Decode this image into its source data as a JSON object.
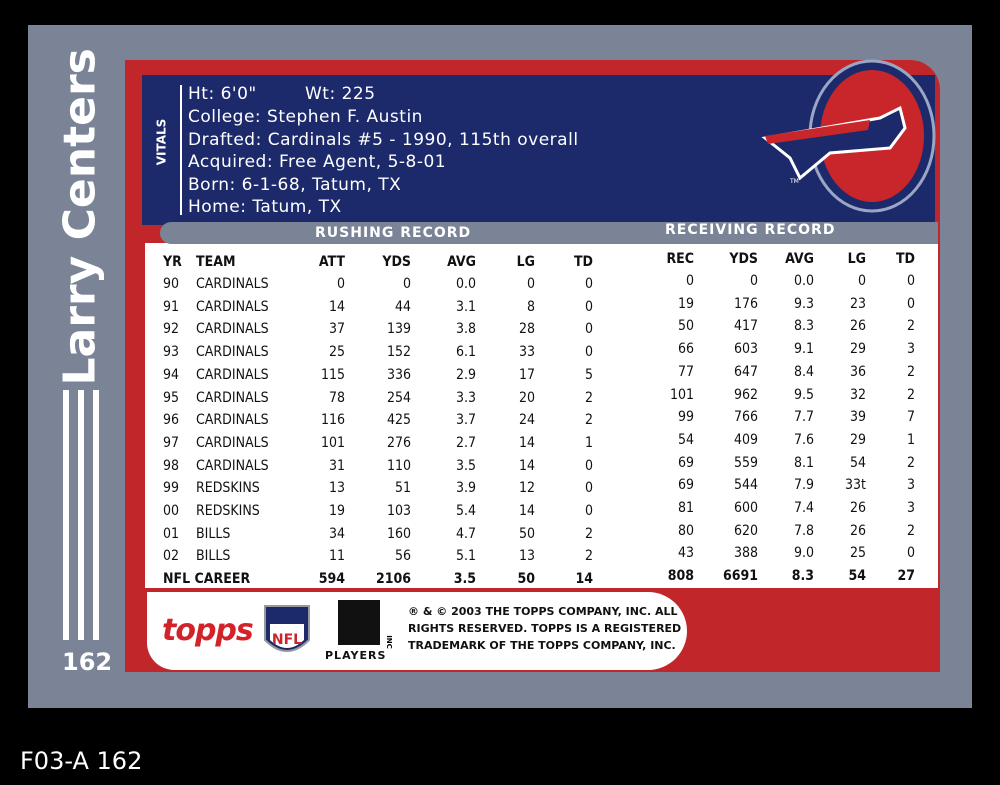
{
  "card": {
    "name": "Larry Centers",
    "number": "162",
    "vitals_label": "VITALS",
    "vitals": {
      "height": "Ht: 6'0\"",
      "weight": "Wt: 225",
      "lines": [
        "College: Stephen F. Austin",
        "Drafted: Cardinals #5 - 1990, 115th overall",
        "Acquired: Free Agent, 5-8-01",
        "Born: 6-1-68, Tatum, TX",
        "Home: Tatum, TX"
      ]
    },
    "logo_tm": "TM",
    "rushing": {
      "title": "RUSHING RECORD",
      "headers": [
        "YR",
        "TEAM",
        "ATT",
        "YDS",
        "AVG",
        "LG",
        "TD"
      ],
      "rows": [
        [
          "90",
          "CARDINALS",
          "0",
          "0",
          "0.0",
          "0",
          "0"
        ],
        [
          "91",
          "CARDINALS",
          "14",
          "44",
          "3.1",
          "8",
          "0"
        ],
        [
          "92",
          "CARDINALS",
          "37",
          "139",
          "3.8",
          "28",
          "0"
        ],
        [
          "93",
          "CARDINALS",
          "25",
          "152",
          "6.1",
          "33",
          "0"
        ],
        [
          "94",
          "CARDINALS",
          "115",
          "336",
          "2.9",
          "17",
          "5"
        ],
        [
          "95",
          "CARDINALS",
          "78",
          "254",
          "3.3",
          "20",
          "2"
        ],
        [
          "96",
          "CARDINALS",
          "116",
          "425",
          "3.7",
          "24",
          "2"
        ],
        [
          "97",
          "CARDINALS",
          "101",
          "276",
          "2.7",
          "14",
          "1"
        ],
        [
          "98",
          "CARDINALS",
          "31",
          "110",
          "3.5",
          "14",
          "0"
        ],
        [
          "99",
          "REDSKINS",
          "13",
          "51",
          "3.9",
          "12",
          "0"
        ],
        [
          "00",
          "REDSKINS",
          "19",
          "103",
          "5.4",
          "14",
          "0"
        ],
        [
          "01",
          "BILLS",
          "34",
          "160",
          "4.7",
          "50",
          "2"
        ],
        [
          "02",
          "BILLS",
          "11",
          "56",
          "5.1",
          "13",
          "2"
        ]
      ],
      "career": [
        "NFL CAREER",
        "594",
        "2106",
        "3.5",
        "50",
        "14"
      ]
    },
    "receiving": {
      "title": "RECEIVING RECORD",
      "headers": [
        "REC",
        "YDS",
        "AVG",
        "LG",
        "TD"
      ],
      "rows": [
        [
          "0",
          "0",
          "0.0",
          "0",
          "0"
        ],
        [
          "19",
          "176",
          "9.3",
          "23",
          "0"
        ],
        [
          "50",
          "417",
          "8.3",
          "26",
          "2"
        ],
        [
          "66",
          "603",
          "9.1",
          "29",
          "3"
        ],
        [
          "77",
          "647",
          "8.4",
          "36",
          "2"
        ],
        [
          "101",
          "962",
          "9.5",
          "32",
          "2"
        ],
        [
          "99",
          "766",
          "7.7",
          "39",
          "7"
        ],
        [
          "54",
          "409",
          "7.6",
          "29",
          "1"
        ],
        [
          "69",
          "559",
          "8.1",
          "54",
          "2"
        ],
        [
          "69",
          "544",
          "7.9",
          "33t",
          "3"
        ],
        [
          "81",
          "600",
          "7.4",
          "26",
          "3"
        ],
        [
          "80",
          "620",
          "7.8",
          "26",
          "2"
        ],
        [
          "43",
          "388",
          "9.0",
          "25",
          "0"
        ]
      ],
      "career": [
        "808",
        "6691",
        "8.3",
        "54",
        "27"
      ]
    },
    "logos": {
      "topps": "topps",
      "nfl": "NFL",
      "players": "PLAYERS",
      "inc": "INC"
    },
    "copyright": [
      "® & © 2003 THE TOPPS COMPANY, INC. ALL",
      "RIGHTS RESERVED. TOPPS IS A REGISTERED",
      "TRADEMARK OF THE TOPPS COMPANY, INC."
    ]
  },
  "scan_label": "F03-A 162"
}
